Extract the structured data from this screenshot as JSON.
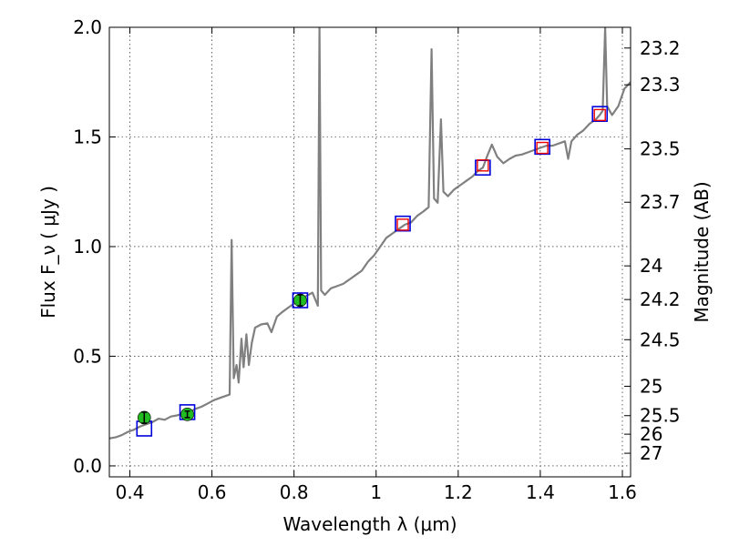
{
  "chart_data": {
    "type": "line",
    "xlabel": "Wavelength  λ (μm)",
    "ylabel": "Flux  F_ν  ( μJy )",
    "y2label": "Magnitude (AB)",
    "xlim": [
      0.35,
      1.62
    ],
    "ylim": [
      -0.05,
      2.0
    ],
    "grid": true,
    "x_ticks": [
      {
        "value": 0.4,
        "label": "0.4"
      },
      {
        "value": 0.6,
        "label": "0.6"
      },
      {
        "value": 0.8,
        "label": "0.8"
      },
      {
        "value": 1.0,
        "label": "1"
      },
      {
        "value": 1.2,
        "label": "1.2"
      },
      {
        "value": 1.4,
        "label": "1.4"
      },
      {
        "value": 1.6,
        "label": "1.6"
      }
    ],
    "y_ticks": [
      {
        "value": 0.0,
        "label": "0.0"
      },
      {
        "value": 0.5,
        "label": "0.5"
      },
      {
        "value": 1.0,
        "label": "1.0"
      },
      {
        "value": 1.5,
        "label": "1.5"
      },
      {
        "value": 2.0,
        "label": "2.0"
      }
    ],
    "y2_ticks": [
      {
        "value": 23.2,
        "label": "23.2"
      },
      {
        "value": 23.3,
        "label": "23.3"
      },
      {
        "value": 23.5,
        "label": "23.5"
      },
      {
        "value": 23.7,
        "label": "23.7"
      },
      {
        "value": 24.0,
        "label": "24"
      },
      {
        "value": 24.2,
        "label": "24.2"
      },
      {
        "value": 24.5,
        "label": "24.5"
      },
      {
        "value": 25.0,
        "label": "25"
      },
      {
        "value": 25.5,
        "label": "25.5"
      },
      {
        "value": 26.0,
        "label": "26"
      },
      {
        "value": 27.0,
        "label": "27"
      }
    ],
    "spectrum_color": "#808080",
    "spectrum": [
      [
        0.35,
        0.125
      ],
      [
        0.365,
        0.13
      ],
      [
        0.38,
        0.14
      ],
      [
        0.395,
        0.155
      ],
      [
        0.41,
        0.165
      ],
      [
        0.425,
        0.18
      ],
      [
        0.44,
        0.19
      ],
      [
        0.455,
        0.2
      ],
      [
        0.47,
        0.215
      ],
      [
        0.485,
        0.21
      ],
      [
        0.5,
        0.225
      ],
      [
        0.515,
        0.23
      ],
      [
        0.53,
        0.24
      ],
      [
        0.545,
        0.245
      ],
      [
        0.56,
        0.26
      ],
      [
        0.575,
        0.27
      ],
      [
        0.59,
        0.285
      ],
      [
        0.605,
        0.3
      ],
      [
        0.62,
        0.31
      ],
      [
        0.635,
        0.32
      ],
      [
        0.643,
        0.325
      ],
      [
        0.648,
        1.03
      ],
      [
        0.653,
        0.4
      ],
      [
        0.66,
        0.46
      ],
      [
        0.665,
        0.38
      ],
      [
        0.672,
        0.58
      ],
      [
        0.677,
        0.45
      ],
      [
        0.684,
        0.6
      ],
      [
        0.69,
        0.46
      ],
      [
        0.697,
        0.56
      ],
      [
        0.705,
        0.63
      ],
      [
        0.72,
        0.645
      ],
      [
        0.735,
        0.65
      ],
      [
        0.745,
        0.61
      ],
      [
        0.758,
        0.68
      ],
      [
        0.77,
        0.7
      ],
      [
        0.785,
        0.72
      ],
      [
        0.8,
        0.74
      ],
      [
        0.815,
        0.76
      ],
      [
        0.83,
        0.775
      ],
      [
        0.845,
        0.79
      ],
      [
        0.858,
        0.73
      ],
      [
        0.862,
        2.0
      ],
      [
        0.866,
        0.8
      ],
      [
        0.875,
        0.78
      ],
      [
        0.89,
        0.81
      ],
      [
        0.905,
        0.82
      ],
      [
        0.92,
        0.83
      ],
      [
        0.935,
        0.85
      ],
      [
        0.95,
        0.87
      ],
      [
        0.965,
        0.89
      ],
      [
        0.98,
        0.93
      ],
      [
        0.995,
        0.96
      ],
      [
        1.01,
        1.0
      ],
      [
        1.025,
        1.04
      ],
      [
        1.04,
        1.06
      ],
      [
        1.055,
        1.08
      ],
      [
        1.07,
        1.1
      ],
      [
        1.085,
        1.11
      ],
      [
        1.1,
        1.14
      ],
      [
        1.115,
        1.16
      ],
      [
        1.128,
        1.18
      ],
      [
        1.135,
        1.9
      ],
      [
        1.141,
        1.22
      ],
      [
        1.15,
        1.2
      ],
      [
        1.158,
        1.58
      ],
      [
        1.164,
        1.25
      ],
      [
        1.175,
        1.23
      ],
      [
        1.19,
        1.26
      ],
      [
        1.205,
        1.28
      ],
      [
        1.22,
        1.3
      ],
      [
        1.235,
        1.32
      ],
      [
        1.248,
        1.345
      ],
      [
        1.26,
        1.36
      ],
      [
        1.272,
        1.42
      ],
      [
        1.282,
        1.465
      ],
      [
        1.295,
        1.41
      ],
      [
        1.31,
        1.38
      ],
      [
        1.325,
        1.4
      ],
      [
        1.34,
        1.415
      ],
      [
        1.355,
        1.42
      ],
      [
        1.37,
        1.43
      ],
      [
        1.385,
        1.44
      ],
      [
        1.4,
        1.45
      ],
      [
        1.415,
        1.46
      ],
      [
        1.43,
        1.46
      ],
      [
        1.445,
        1.47
      ],
      [
        1.46,
        1.48
      ],
      [
        1.468,
        1.4
      ],
      [
        1.476,
        1.48
      ],
      [
        1.49,
        1.51
      ],
      [
        1.505,
        1.53
      ],
      [
        1.52,
        1.56
      ],
      [
        1.535,
        1.58
      ],
      [
        1.545,
        1.6
      ],
      [
        1.552,
        1.62
      ],
      [
        1.558,
        2.0
      ],
      [
        1.563,
        1.64
      ],
      [
        1.575,
        1.6
      ],
      [
        1.59,
        1.64
      ],
      [
        1.605,
        1.72
      ],
      [
        1.62,
        1.75
      ]
    ],
    "photometry_points": {
      "color": "#22bb22",
      "points": [
        {
          "x": 0.435,
          "y": 0.22,
          "err": 0.025
        },
        {
          "x": 0.54,
          "y": 0.235,
          "err": 0.015
        },
        {
          "x": 0.815,
          "y": 0.755,
          "err": 0.025
        }
      ]
    },
    "blue_boxes": {
      "color": "#0000dd",
      "points": [
        {
          "x": 0.435,
          "y": 0.17
        },
        {
          "x": 0.54,
          "y": 0.245
        },
        {
          "x": 0.815,
          "y": 0.755
        },
        {
          "x": 1.065,
          "y": 1.105
        },
        {
          "x": 1.26,
          "y": 1.36
        },
        {
          "x": 1.405,
          "y": 1.455
        },
        {
          "x": 1.545,
          "y": 1.605
        }
      ]
    },
    "red_boxes": {
      "color": "#ee0000",
      "points": [
        {
          "x": 1.065,
          "y": 1.1
        },
        {
          "x": 1.26,
          "y": 1.37
        },
        {
          "x": 1.405,
          "y": 1.45
        },
        {
          "x": 1.545,
          "y": 1.6
        }
      ]
    }
  }
}
